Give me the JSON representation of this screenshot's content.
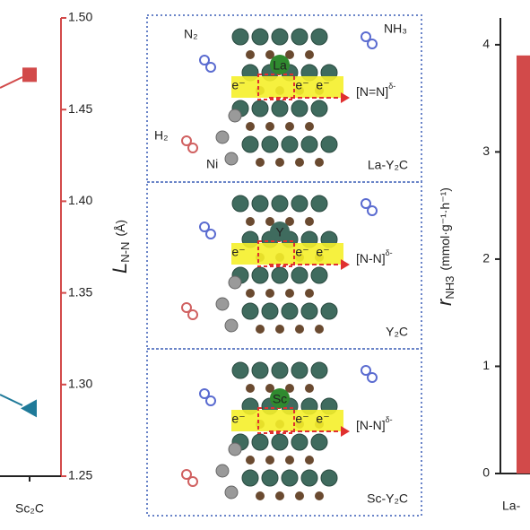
{
  "chart_data": [
    {
      "type": "scatter",
      "y_label": "L",
      "y_label_sub": "N-N",
      "y_label_unit": "(Å)",
      "categories": [
        "Sc₂C"
      ],
      "series": [
        {
          "color": "#d24a4a",
          "marker": "square",
          "values": [
            1.469
          ]
        },
        {
          "color": "#1f7a99",
          "marker": "triangle",
          "values": [
            1.287
          ]
        }
      ],
      "axis_color": "#d24a4a",
      "ylim": [
        1.25,
        1.5
      ],
      "yticks": [
        {
          "value": 1.5,
          "label": "1.50"
        },
        1.45,
        {
          "value": 1.4,
          "label": "1.40"
        },
        1.35,
        {
          "value": 1.3,
          "label": "1.30"
        },
        1.25
      ]
    },
    {
      "type": "bar",
      "y_label": "r",
      "y_label_sub": "NH3",
      "y_label_unit": "(mmol·g⁻¹·h⁻¹)",
      "categories": [
        "La-"
      ],
      "values": [
        3.9
      ],
      "color": "#d24a4a",
      "ylim": [
        0,
        4.25
      ],
      "yticks": [
        0,
        1,
        2,
        3,
        4
      ]
    }
  ],
  "diagram": {
    "panels": [
      {
        "dopant": "La",
        "product": "[N=N]",
        "product_sup": "δ-",
        "label": "La-Y₂C",
        "label_color": "#c83232",
        "electrons": [
          "e⁻",
          "e⁻",
          "e⁻"
        ],
        "species": [
          "N₂",
          "NH₃",
          "H₂",
          "Ni"
        ]
      },
      {
        "dopant": "Y",
        "product": "[N-N]",
        "product_sup": "δ-",
        "label": "Y₂C",
        "label_color": "#3a8fb0",
        "electrons": [
          "e⁻",
          "e⁻",
          "e⁻"
        ]
      },
      {
        "dopant": "Sc",
        "product": "[N-N]",
        "product_sup": "δ-",
        "label": "Sc-Y₂C",
        "label_color": "#e0b840",
        "electrons": [
          "e⁻",
          "e⁻",
          "e⁻"
        ]
      }
    ]
  }
}
